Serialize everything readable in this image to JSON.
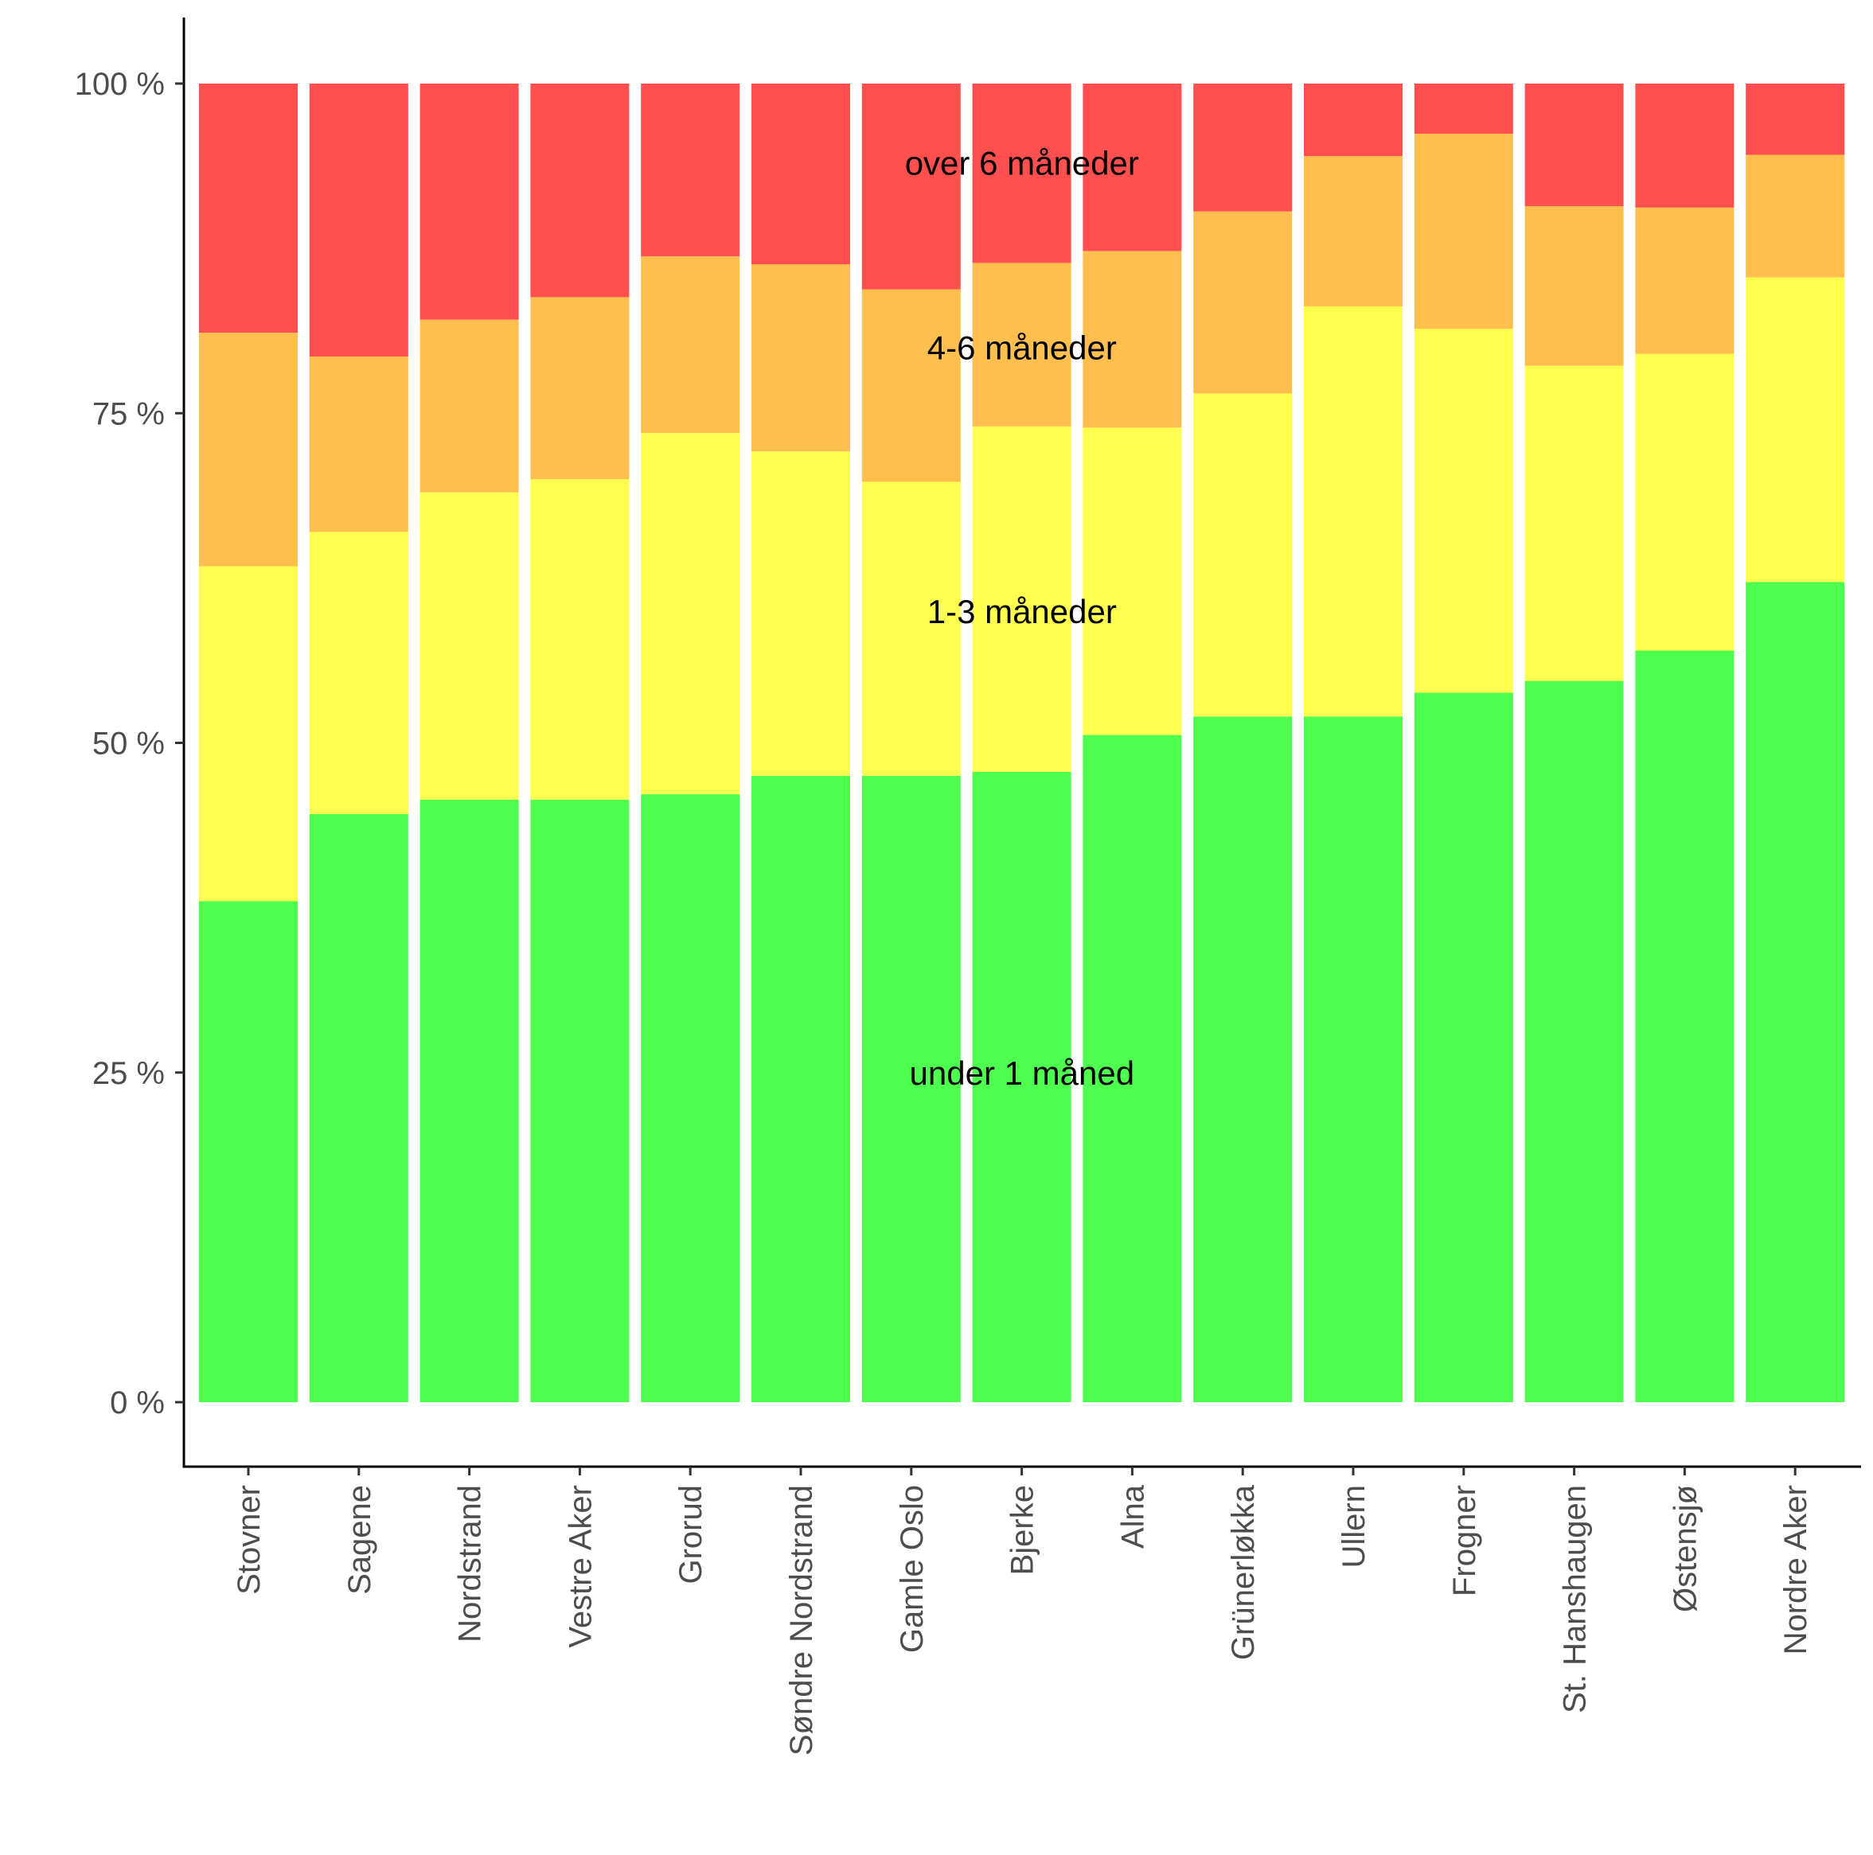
{
  "chart_data": {
    "type": "bar",
    "stacked": true,
    "percent": true,
    "title": "",
    "xlabel": "",
    "ylabel": "",
    "ylim": [
      0,
      100
    ],
    "grid": false,
    "legend": "none",
    "y_ticks": [
      "0 %",
      "25 %",
      "50 %",
      "75 %",
      "100 %"
    ],
    "categories": [
      "Stovner",
      "Sagene",
      "Nordstrand",
      "Vestre Aker",
      "Grorud",
      "Søndre Nordstrand",
      "Gamle Oslo",
      "Bjerke",
      "Alna",
      "Grünerløkka",
      "Ullern",
      "Frogner",
      "St. Hanshaugen",
      "Østensjø",
      "Nordre Aker"
    ],
    "series": [
      {
        "name": "under 1 måned",
        "color": "#4FFF4F",
        "values": [
          38.0,
          44.6,
          45.7,
          45.7,
          46.1,
          47.5,
          47.5,
          47.8,
          50.6,
          52.0,
          52.0,
          53.8,
          54.7,
          57.0,
          62.2
        ]
      },
      {
        "name": "1-3 måneder",
        "color": "#FFFF4F",
        "values": [
          25.4,
          21.4,
          23.3,
          24.3,
          27.4,
          24.6,
          22.3,
          26.2,
          23.3,
          24.5,
          31.1,
          27.6,
          23.9,
          22.5,
          23.1
        ]
      },
      {
        "name": "4-6 måneder",
        "color": "#FFBF4F",
        "values": [
          17.7,
          13.3,
          13.1,
          13.8,
          13.4,
          14.2,
          14.6,
          12.4,
          13.4,
          13.8,
          11.4,
          14.8,
          12.1,
          11.1,
          9.3
        ]
      },
      {
        "name": "over 6 måneder",
        "color": "#FF4F4F",
        "values": [
          18.9,
          20.7,
          17.9,
          16.2,
          13.1,
          13.7,
          15.6,
          13.6,
          12.7,
          9.7,
          5.5,
          3.8,
          9.3,
          9.4,
          5.4
        ]
      }
    ],
    "annotations": [
      {
        "text": "over 6 måneder",
        "x": "Gamle Oslo",
        "y": 94.0
      },
      {
        "text": "4-6 måneder",
        "x": "Gamle Oslo",
        "y": 80.0
      },
      {
        "text": "1-3 måneder",
        "x": "Gamle Oslo",
        "y": 60.0
      },
      {
        "text": "under 1 måned",
        "x": "Gamle Oslo",
        "y": 25.0
      }
    ]
  }
}
